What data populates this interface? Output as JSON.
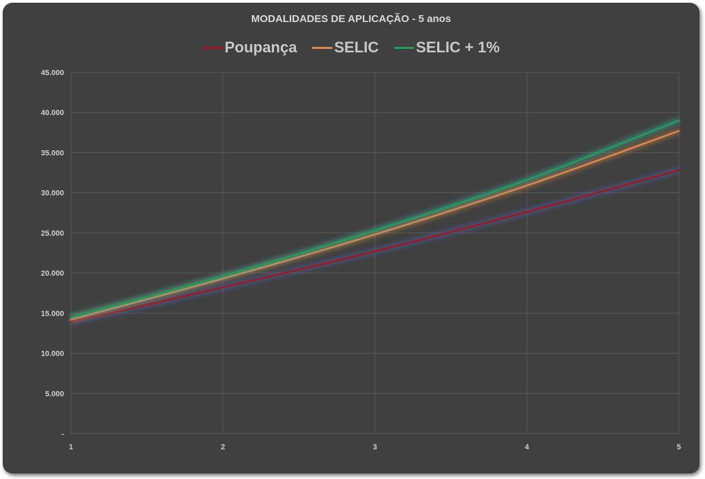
{
  "chart_data": {
    "type": "line",
    "title": "MODALIDADES DE APLICAÇÃO - 5 anos",
    "xlabel": "",
    "ylabel": "",
    "x": [
      1,
      2,
      3,
      4,
      5
    ],
    "x_tick_labels": [
      "1",
      "2",
      "3",
      "4",
      "5"
    ],
    "ylim": [
      0,
      45000
    ],
    "y_tick_labels": [
      "-",
      "5.000",
      "10.000",
      "15.000",
      "20.000",
      "25.000",
      "30.000",
      "35.000",
      "40.000",
      "45.000"
    ],
    "grid": true,
    "legend_position": "top",
    "series": [
      {
        "name": "Poupança",
        "color": "#a1171f",
        "values": [
          13900,
          18200,
          22700,
          27600,
          32800
        ]
      },
      {
        "name": "SELIC",
        "color": "#e0874f",
        "values": [
          14200,
          19300,
          24800,
          30900,
          37700
        ]
      },
      {
        "name": "SELIC + 1%",
        "color": "#1f9e57",
        "values": [
          14500,
          19600,
          25300,
          31600,
          39000
        ]
      }
    ]
  }
}
